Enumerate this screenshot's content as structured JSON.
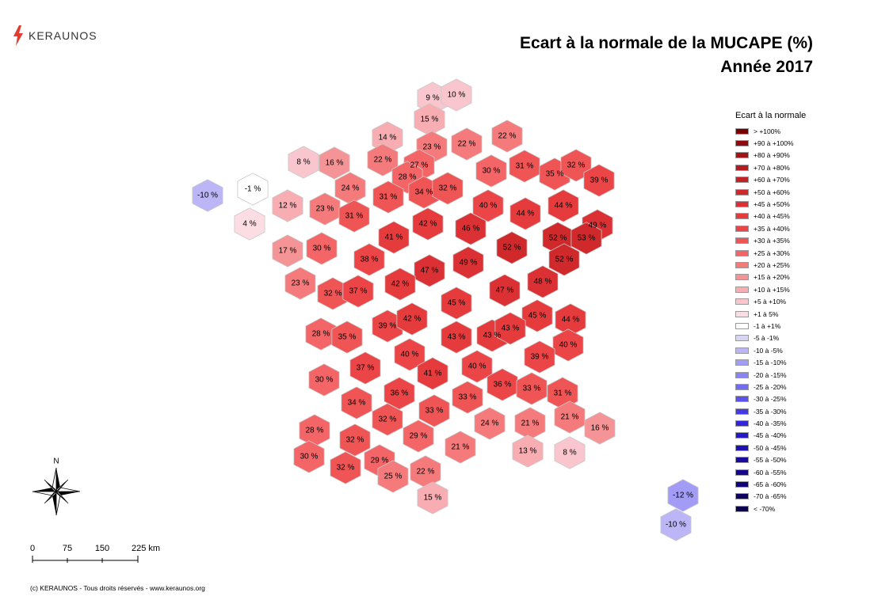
{
  "brand": {
    "name": "KERAUNOS",
    "color": "#e03c31"
  },
  "title": {
    "line1": "Ecart à la normale de la MUCAPE (%)",
    "line2": "Année 2017"
  },
  "legend": {
    "title": "Ecart à la normale",
    "items": [
      {
        "label": "> +100%",
        "color": "#7a0000"
      },
      {
        "label": "+90 à +100%",
        "color": "#8e0a0c"
      },
      {
        "label": "+80 à +90%",
        "color": "#a11417"
      },
      {
        "label": "+70 à +80%",
        "color": "#b31b1f"
      },
      {
        "label": "+60 à +70%",
        "color": "#c22226"
      },
      {
        "label": "+50 à +60%",
        "color": "#d0292c"
      },
      {
        "label": "+45 à +50%",
        "color": "#dc3134"
      },
      {
        "label": "+40 à +45%",
        "color": "#e53b3d"
      },
      {
        "label": "+35 à +40%",
        "color": "#ec4547"
      },
      {
        "label": "+30 à +35%",
        "color": "#f05556"
      },
      {
        "label": "+25 à +30%",
        "color": "#f36567"
      },
      {
        "label": "+20 à +25%",
        "color": "#f47a7c"
      },
      {
        "label": "+15 à +20%",
        "color": "#f59496"
      },
      {
        "label": "+10 à +15%",
        "color": "#f7adb2"
      },
      {
        "label": "+5 à +10%",
        "color": "#f9c6cd"
      },
      {
        "label": "+1 à 5%",
        "color": "#fcdde4"
      },
      {
        "label": "-1 à +1%",
        "color": "#ffffff"
      },
      {
        "label": "-5 à -1%",
        "color": "#d8d4f6"
      },
      {
        "label": "-10 à -5%",
        "color": "#bcb6f6"
      },
      {
        "label": "-15 à -10%",
        "color": "#a29cf6"
      },
      {
        "label": "-20 à -15%",
        "color": "#8a84f3"
      },
      {
        "label": "-25 à -20%",
        "color": "#736bf0"
      },
      {
        "label": "-30 à -25%",
        "color": "#5b52ec"
      },
      {
        "label": "-35 à -30%",
        "color": "#453ae6"
      },
      {
        "label": "-40 à -35%",
        "color": "#3326d8"
      },
      {
        "label": "-45 à -40%",
        "color": "#2718c6"
      },
      {
        "label": "-50 à -45%",
        "color": "#1f10b3"
      },
      {
        "label": "-55 à -50%",
        "color": "#1a0aa0"
      },
      {
        "label": "-60 à -55%",
        "color": "#15068c"
      },
      {
        "label": "-65 à -60%",
        "color": "#110477"
      },
      {
        "label": "-70 à -65%",
        "color": "#0d0262"
      },
      {
        "label": "< -70%",
        "color": "#0a0150"
      }
    ]
  },
  "departments": [
    {
      "label": "9 %",
      "value": 9
    },
    {
      "label": "10 %",
      "value": 10
    },
    {
      "label": "15 %",
      "value": 15
    },
    {
      "label": "14 %",
      "value": 14
    },
    {
      "label": "23 %",
      "value": 23
    },
    {
      "label": "22 %",
      "value": 22
    },
    {
      "label": "22 %",
      "value": 22
    },
    {
      "label": "8 %",
      "value": 8
    },
    {
      "label": "16 %",
      "value": 16
    },
    {
      "label": "22 %",
      "value": 22
    },
    {
      "label": "27 %",
      "value": 27
    },
    {
      "label": "28 %",
      "value": 28
    },
    {
      "label": "30 %",
      "value": 30
    },
    {
      "label": "31 %",
      "value": 31
    },
    {
      "label": "35 %",
      "value": 35
    },
    {
      "label": "32 %",
      "value": 32
    },
    {
      "label": "39 %",
      "value": 39
    },
    {
      "label": "-10 %",
      "value": -10
    },
    {
      "label": "-1 %",
      "value": -1
    },
    {
      "label": "24 %",
      "value": 24
    },
    {
      "label": "34 %",
      "value": 34
    },
    {
      "label": "32 %",
      "value": 32
    },
    {
      "label": "31 %",
      "value": 31
    },
    {
      "label": "12 %",
      "value": 12
    },
    {
      "label": "23 %",
      "value": 23
    },
    {
      "label": "4 %",
      "value": 4
    },
    {
      "label": "31 %",
      "value": 31
    },
    {
      "label": "42 %",
      "value": 42
    },
    {
      "label": "40 %",
      "value": 40
    },
    {
      "label": "44 %",
      "value": 44
    },
    {
      "label": "44 %",
      "value": 44
    },
    {
      "label": "49 %",
      "value": 49
    },
    {
      "label": "46 %",
      "value": 46
    },
    {
      "label": "41 %",
      "value": 41
    },
    {
      "label": "52 %",
      "value": 52
    },
    {
      "label": "53 %",
      "value": 53
    },
    {
      "label": "17 %",
      "value": 17
    },
    {
      "label": "30 %",
      "value": 30
    },
    {
      "label": "38 %",
      "value": 38
    },
    {
      "label": "52 %",
      "value": 52
    },
    {
      "label": "49 %",
      "value": 49
    },
    {
      "label": "52 %",
      "value": 52
    },
    {
      "label": "47 %",
      "value": 47
    },
    {
      "label": "23 %",
      "value": 23
    },
    {
      "label": "42 %",
      "value": 42
    },
    {
      "label": "32 %",
      "value": 32
    },
    {
      "label": "37 %",
      "value": 37
    },
    {
      "label": "48 %",
      "value": 48
    },
    {
      "label": "47 %",
      "value": 47
    },
    {
      "label": "45 %",
      "value": 45
    },
    {
      "label": "45 %",
      "value": 45
    },
    {
      "label": "44 %",
      "value": 44
    },
    {
      "label": "39 %",
      "value": 39
    },
    {
      "label": "42 %",
      "value": 42
    },
    {
      "label": "28 %",
      "value": 28
    },
    {
      "label": "35 %",
      "value": 35
    },
    {
      "label": "43 %",
      "value": 43
    },
    {
      "label": "43 %",
      "value": 43
    },
    {
      "label": "43 %",
      "value": 43
    },
    {
      "label": "40 %",
      "value": 40
    },
    {
      "label": "40 %",
      "value": 40
    },
    {
      "label": "37 %",
      "value": 37
    },
    {
      "label": "40 %",
      "value": 40
    },
    {
      "label": "39 %",
      "value": 39
    },
    {
      "label": "41 %",
      "value": 41
    },
    {
      "label": "30 %",
      "value": 30
    },
    {
      "label": "36 %",
      "value": 36
    },
    {
      "label": "36 %",
      "value": 36
    },
    {
      "label": "33 %",
      "value": 33
    },
    {
      "label": "31 %",
      "value": 31
    },
    {
      "label": "33 %",
      "value": 33
    },
    {
      "label": "34 %",
      "value": 34
    },
    {
      "label": "33 %",
      "value": 33
    },
    {
      "label": "32 %",
      "value": 32
    },
    {
      "label": "21 %",
      "value": 21
    },
    {
      "label": "28 %",
      "value": 28
    },
    {
      "label": "29 %",
      "value": 29
    },
    {
      "label": "24 %",
      "value": 24
    },
    {
      "label": "21 %",
      "value": 21
    },
    {
      "label": "16 %",
      "value": 16
    },
    {
      "label": "32 %",
      "value": 32
    },
    {
      "label": "21 %",
      "value": 21
    },
    {
      "label": "13 %",
      "value": 13
    },
    {
      "label": "8 %",
      "value": 8
    },
    {
      "label": "30 %",
      "value": 30
    },
    {
      "label": "29 %",
      "value": 29
    },
    {
      "label": "32 %",
      "value": 32
    },
    {
      "label": "22 %",
      "value": 22
    },
    {
      "label": "25 %",
      "value": 25
    },
    {
      "label": "15 %",
      "value": 15
    },
    {
      "label": "-12 %",
      "value": -12
    },
    {
      "label": "-10 %",
      "value": -10
    }
  ],
  "compass": {
    "label": "N"
  },
  "scale": {
    "ticks": [
      "0",
      "75",
      "150",
      "225 km"
    ]
  },
  "footer": "(c) KERAUNOS - Tous droits réservés - www.keraunos.org"
}
